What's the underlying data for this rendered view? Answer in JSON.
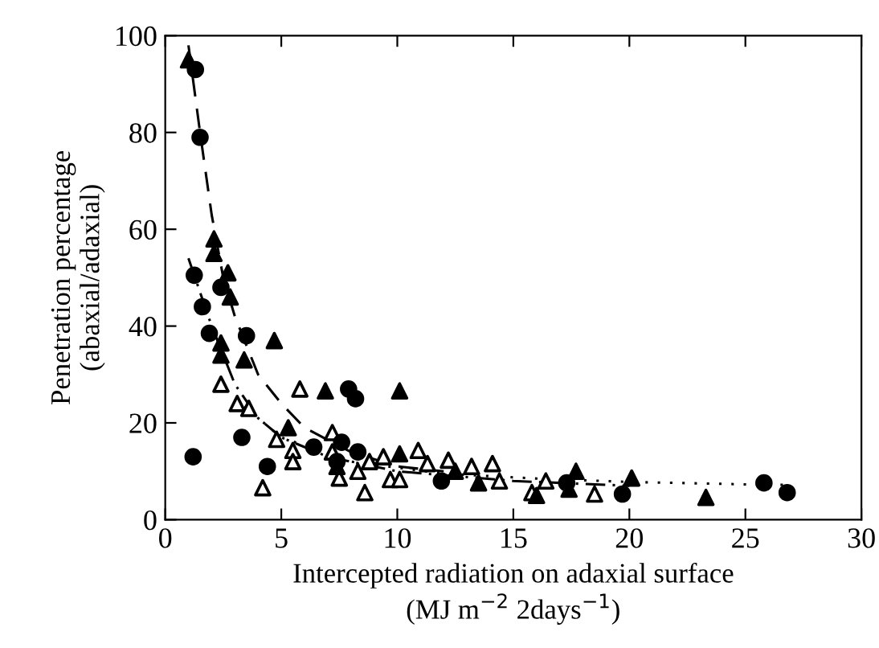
{
  "chart_data": {
    "type": "scatter",
    "xlabel": "Intercepted radiation on adaxial surface\n(MJ m$^{−2}$ 2days$^{−1}$)",
    "ylabel": "Penetration percentage\n(abaxial/adaxial)",
    "xlim": [
      0,
      30
    ],
    "ylim": [
      0,
      100
    ],
    "xticks": [
      0,
      5,
      10,
      15,
      20,
      25,
      30
    ],
    "yticks": [
      0,
      20,
      40,
      60,
      80,
      100
    ],
    "grid": false,
    "legend": false,
    "series": [
      {
        "marker": "circle",
        "color": "#000000",
        "x": [
          1.3,
          1.5,
          1.25,
          1.6,
          2.4,
          1.9,
          3.5,
          1.2,
          3.3,
          4.4,
          7.9,
          8.2,
          6.4,
          7.4,
          7.6,
          8.3,
          11.9,
          17.3,
          19.7,
          25.8,
          26.8
        ],
        "values": [
          93,
          79,
          50.5,
          44,
          48,
          38.5,
          38,
          13,
          17,
          11,
          27,
          25,
          15,
          12,
          16,
          14,
          8,
          7.6,
          5.3,
          7.6,
          5.6
        ]
      },
      {
        "marker": "triangle",
        "color": "#000000",
        "x": [
          1.0,
          2.1,
          2.1,
          2.7,
          2.8,
          2.4,
          2.4,
          4.7,
          3.4,
          6.9,
          10.1,
          5.3,
          10.1,
          7.4,
          12.5,
          13.5,
          17.7,
          17.4,
          20.1,
          23.3,
          16
        ],
        "values": [
          95,
          58,
          55,
          51,
          46,
          36.5,
          34,
          37,
          33,
          26.6,
          26.6,
          19,
          13.6,
          11,
          10,
          7.6,
          10,
          6.3,
          8.6,
          4.6,
          5
        ]
      },
      {
        "marker": "triangle",
        "color": "#ffffff",
        "x": [
          2.4,
          3.1,
          3.6,
          4.8,
          4.2,
          5.5,
          5.5,
          5.8,
          7.2,
          7.2,
          7.5,
          8.3,
          8.6,
          8.8,
          9.4,
          9.7,
          10.1,
          10.9,
          11.3,
          12.2,
          13.2,
          14.1,
          14.4,
          15.8,
          16.4,
          18.5
        ],
        "values": [
          28,
          24,
          23,
          16.6,
          6.6,
          14.3,
          12,
          27,
          18,
          14,
          8.6,
          10,
          5.6,
          12,
          13,
          8.3,
          8.3,
          14.3,
          11.6,
          12.3,
          11,
          11.6,
          8,
          5.6,
          8,
          5.3
        ]
      },
      {
        "type": "line",
        "line_style": "dashed",
        "color": "#000000",
        "x": [
          1,
          1.5,
          2,
          2.5,
          3,
          4,
          5,
          6,
          8,
          10,
          12
        ],
        "values": [
          98,
          80,
          63,
          50,
          42,
          30,
          24,
          19,
          14,
          11,
          10
        ]
      },
      {
        "type": "line",
        "line_style": "dashdot",
        "color": "#000000",
        "x": [
          1,
          2,
          3,
          4,
          5,
          7,
          10,
          15,
          20
        ],
        "values": [
          54,
          40,
          28,
          21,
          17,
          13,
          10,
          8,
          7
        ]
      },
      {
        "type": "line",
        "line_style": "dotted",
        "color": "#000000",
        "x": [
          3,
          5,
          8,
          12,
          16,
          20,
          25,
          27
        ],
        "values": [
          25,
          17,
          12,
          9.5,
          8.5,
          7.8,
          7.3,
          7.2
        ]
      }
    ]
  }
}
